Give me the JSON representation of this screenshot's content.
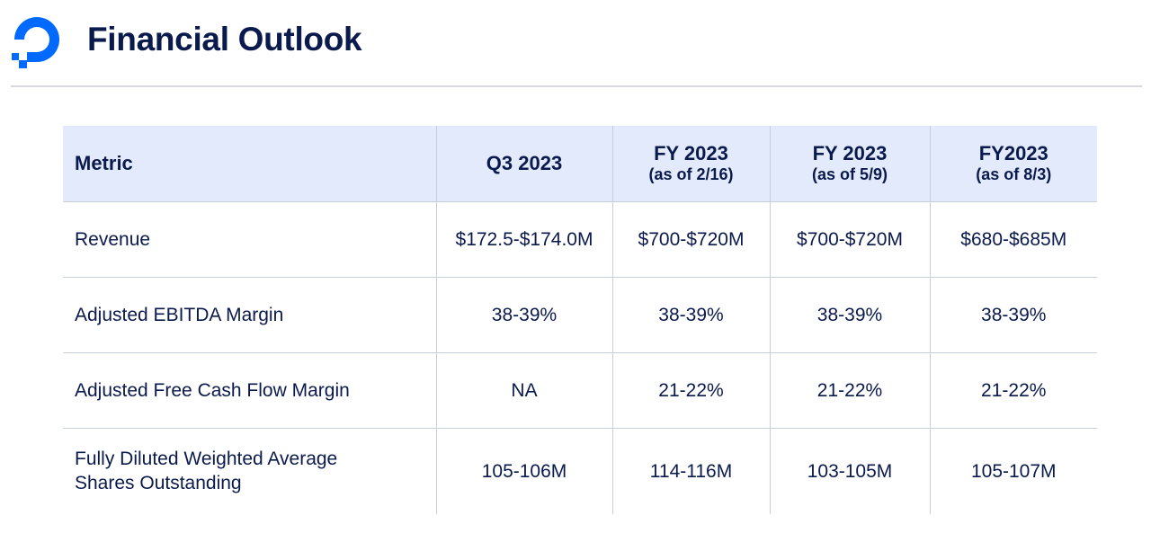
{
  "header": {
    "title": "Financial Outlook",
    "logo_icon": "digitalocean-logo-icon",
    "brand_color": "#0069ff"
  },
  "table": {
    "columns": [
      {
        "label": "Metric",
        "sub": ""
      },
      {
        "label": "Q3 2023",
        "sub": ""
      },
      {
        "label": "FY 2023",
        "sub": "(as of 2/16)"
      },
      {
        "label": "FY 2023",
        "sub": "(as of 5/9)"
      },
      {
        "label": "FY2023",
        "sub": "(as of 8/3)"
      }
    ],
    "rows": [
      {
        "metric": "Revenue",
        "values": [
          "$172.5-$174.0M",
          "$700-$720M",
          "$700-$720M",
          "$680-$685M"
        ]
      },
      {
        "metric": "Adjusted EBITDA Margin",
        "values": [
          "38-39%",
          "38-39%",
          "38-39%",
          "38-39%"
        ]
      },
      {
        "metric": "Adjusted Free Cash Flow Margin",
        "values": [
          "NA",
          "21-22%",
          "21-22%",
          "21-22%"
        ]
      },
      {
        "metric": "Fully Diluted Weighted Average Shares Outstanding",
        "values": [
          "105-106M",
          "114-116M",
          "103-105M",
          "105-107M"
        ]
      }
    ]
  }
}
